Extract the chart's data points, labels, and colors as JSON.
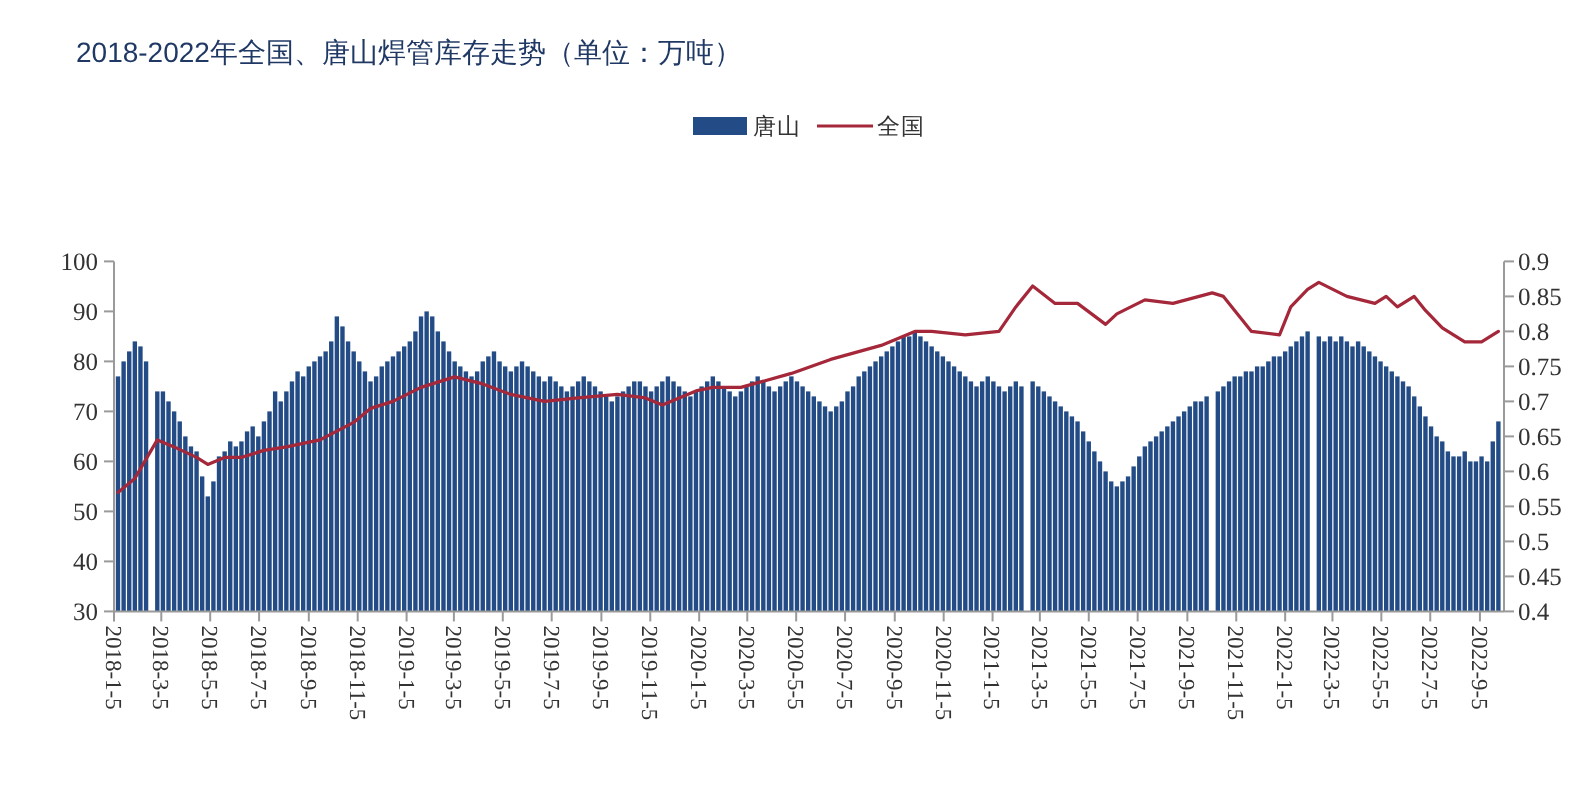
{
  "chart_data": {
    "type": "bar",
    "title": "2018-2022年全国、唐山焊管库存走势（单位：万吨）",
    "legend": "top",
    "x": [
      "2018-01-10",
      "2018-01-17",
      "2018-01-24",
      "2018-01-31",
      "2018-02-07",
      "2018-02-14",
      "2018-02-21",
      "2018-02-28",
      "2018-03-07",
      "2018-03-14",
      "2018-03-21",
      "2018-03-28",
      "2018-04-04",
      "2018-04-11",
      "2018-04-18",
      "2018-04-25",
      "2018-05-02",
      "2018-05-09",
      "2018-05-16",
      "2018-05-23",
      "2018-05-30",
      "2018-06-06",
      "2018-06-13",
      "2018-06-20",
      "2018-06-27",
      "2018-07-04",
      "2018-07-11",
      "2018-07-18",
      "2018-07-25",
      "2018-08-01",
      "2018-08-08",
      "2018-08-15",
      "2018-08-22",
      "2018-08-29",
      "2018-09-05",
      "2018-09-12",
      "2018-09-19",
      "2018-09-26",
      "2018-10-03",
      "2018-10-10",
      "2018-10-17",
      "2018-10-24",
      "2018-10-31",
      "2018-11-07",
      "2018-11-14",
      "2018-11-21",
      "2018-11-28",
      "2018-12-05",
      "2018-12-12",
      "2018-12-19",
      "2018-12-26",
      "2019-01-02",
      "2019-01-09",
      "2019-01-16",
      "2019-01-23",
      "2019-01-30",
      "2019-02-06",
      "2019-02-13",
      "2019-02-20",
      "2019-02-27",
      "2019-03-06",
      "2019-03-13",
      "2019-03-20",
      "2019-03-27",
      "2019-04-03",
      "2019-04-10",
      "2019-04-17",
      "2019-04-24",
      "2019-05-01",
      "2019-05-08",
      "2019-05-15",
      "2019-05-22",
      "2019-05-29",
      "2019-06-05",
      "2019-06-12",
      "2019-06-19",
      "2019-06-26",
      "2019-07-03",
      "2019-07-10",
      "2019-07-17",
      "2019-07-24",
      "2019-07-31",
      "2019-08-07",
      "2019-08-14",
      "2019-08-21",
      "2019-08-28",
      "2019-09-04",
      "2019-09-11",
      "2019-09-18",
      "2019-09-25",
      "2019-10-02",
      "2019-10-09",
      "2019-10-16",
      "2019-10-23",
      "2019-10-30",
      "2019-11-06",
      "2019-11-13",
      "2019-11-20",
      "2019-11-27",
      "2019-12-04",
      "2019-12-11",
      "2019-12-18",
      "2019-12-25",
      "2020-01-01",
      "2020-01-08",
      "2020-01-15",
      "2020-01-22",
      "2020-01-29",
      "2020-02-05",
      "2020-02-12",
      "2020-02-19",
      "2020-02-26",
      "2020-03-04",
      "2020-03-11",
      "2020-03-18",
      "2020-03-25",
      "2020-04-01",
      "2020-04-08",
      "2020-04-15",
      "2020-04-22",
      "2020-04-29",
      "2020-05-06",
      "2020-05-13",
      "2020-05-20",
      "2020-05-27",
      "2020-06-03",
      "2020-06-10",
      "2020-06-17",
      "2020-06-24",
      "2020-07-01",
      "2020-07-08",
      "2020-07-15",
      "2020-07-22",
      "2020-07-29",
      "2020-08-05",
      "2020-08-12",
      "2020-08-19",
      "2020-08-26",
      "2020-09-02",
      "2020-09-09",
      "2020-09-16",
      "2020-09-23",
      "2020-09-30",
      "2020-10-07",
      "2020-10-14",
      "2020-10-21",
      "2020-10-28",
      "2020-11-04",
      "2020-11-11",
      "2020-11-18",
      "2020-11-25",
      "2020-12-02",
      "2020-12-09",
      "2020-12-16",
      "2020-12-23",
      "2020-12-30",
      "2021-01-06",
      "2021-01-13",
      "2021-01-20",
      "2021-01-27",
      "2021-02-03",
      "2021-02-10",
      "2021-02-17",
      "2021-02-24",
      "2021-03-03",
      "2021-03-10",
      "2021-03-17",
      "2021-03-24",
      "2021-03-31",
      "2021-04-07",
      "2021-04-14",
      "2021-04-21",
      "2021-04-28",
      "2021-05-05",
      "2021-05-12",
      "2021-05-19",
      "2021-05-26",
      "2021-06-02",
      "2021-06-09",
      "2021-06-16",
      "2021-06-23",
      "2021-06-30",
      "2021-07-07",
      "2021-07-14",
      "2021-07-21",
      "2021-07-28",
      "2021-08-04",
      "2021-08-11",
      "2021-08-18",
      "2021-08-25",
      "2021-09-01",
      "2021-09-08",
      "2021-09-15",
      "2021-09-22",
      "2021-09-29",
      "2021-10-06",
      "2021-10-13",
      "2021-10-20",
      "2021-10-27",
      "2021-11-03",
      "2021-11-10",
      "2021-11-17",
      "2021-11-24",
      "2021-12-01",
      "2021-12-08",
      "2021-12-15",
      "2021-12-22",
      "2021-12-29",
      "2022-01-05",
      "2022-01-12",
      "2022-01-19",
      "2022-01-26",
      "2022-02-02",
      "2022-02-09",
      "2022-02-16",
      "2022-02-23",
      "2022-03-02",
      "2022-03-09",
      "2022-03-16",
      "2022-03-23",
      "2022-03-30",
      "2022-04-06",
      "2022-04-13",
      "2022-04-20",
      "2022-04-27",
      "2022-05-04",
      "2022-05-11",
      "2022-05-18",
      "2022-05-25",
      "2022-06-01",
      "2022-06-08",
      "2022-06-15",
      "2022-06-22",
      "2022-06-29",
      "2022-07-06",
      "2022-07-13",
      "2022-07-20",
      "2022-07-27",
      "2022-08-03",
      "2022-08-10",
      "2022-08-17",
      "2022-08-24",
      "2022-08-31",
      "2022-09-07",
      "2022-09-14",
      "2022-09-21",
      "2022-09-28"
    ],
    "series": [
      {
        "name": "唐山",
        "color": "#234c86",
        "values": [
          77,
          80,
          82,
          84,
          83,
          80,
          null,
          74,
          74,
          72,
          70,
          68,
          65,
          63,
          62,
          57,
          53,
          56,
          61,
          62,
          64,
          63,
          64,
          66,
          67,
          65,
          68,
          70,
          74,
          72,
          74,
          76,
          78,
          77,
          79,
          80,
          81,
          82,
          84,
          89,
          87,
          84,
          82,
          80,
          78,
          76,
          77,
          79,
          80,
          81,
          82,
          83,
          84,
          86,
          89,
          90,
          89,
          86,
          84,
          82,
          80,
          79,
          78,
          77,
          78,
          80,
          81,
          82,
          80,
          79,
          78,
          79,
          80,
          79,
          78,
          77,
          76,
          77,
          76,
          75,
          74,
          75,
          76,
          77,
          76,
          75,
          74,
          73,
          72,
          73,
          74,
          75,
          76,
          76,
          75,
          74,
          75,
          76,
          77,
          76,
          75,
          74,
          73,
          74,
          75,
          76,
          77,
          76,
          75,
          74,
          73,
          74,
          75,
          76,
          77,
          76,
          75,
          74,
          75,
          76,
          77,
          76,
          75,
          74,
          73,
          72,
          71,
          70,
          71,
          72,
          74,
          75,
          77,
          78,
          79,
          80,
          81,
          82,
          83,
          84,
          85,
          85,
          86,
          85,
          84,
          83,
          82,
          81,
          80,
          79,
          78,
          77,
          76,
          75,
          76,
          77,
          76,
          75,
          74,
          75,
          76,
          75,
          null,
          76,
          75,
          74,
          73,
          72,
          71,
          70,
          69,
          68,
          66,
          64,
          62,
          60,
          58,
          56,
          55,
          56,
          57,
          59,
          61,
          63,
          64,
          65,
          66,
          67,
          68,
          69,
          70,
          71,
          72,
          72,
          73,
          null,
          74,
          75,
          76,
          77,
          77,
          78,
          78,
          79,
          79,
          80,
          81,
          81,
          82,
          83,
          84,
          85,
          86,
          null,
          85,
          84,
          85,
          84,
          85,
          84,
          83,
          84,
          83,
          82,
          81,
          80,
          79,
          78,
          77,
          76,
          75,
          73,
          71,
          69,
          67,
          65,
          64,
          62,
          61,
          61,
          62,
          60,
          60,
          61,
          60,
          64,
          68
        ]
      },
      {
        "name": "全国",
        "type": "line",
        "axis": "y2",
        "color": "#a5283a",
        "x": [
          "2018-01-10",
          "2018-01-31",
          "2018-02-28",
          "2018-03-21",
          "2018-04-18",
          "2018-05-02",
          "2018-05-23",
          "2018-06-13",
          "2018-07-11",
          "2018-08-08",
          "2018-09-19",
          "2018-10-31",
          "2018-11-21",
          "2018-12-19",
          "2019-01-23",
          "2019-03-06",
          "2019-04-10",
          "2019-05-15",
          "2019-06-26",
          "2019-08-07",
          "2019-09-25",
          "2019-10-30",
          "2019-11-20",
          "2020-01-01",
          "2020-01-22",
          "2020-02-26",
          "2020-04-29",
          "2020-06-17",
          "2020-08-19",
          "2020-09-30",
          "2020-10-21",
          "2020-12-02",
          "2021-01-13",
          "2021-02-03",
          "2021-02-24",
          "2021-03-24",
          "2021-04-21",
          "2021-05-26",
          "2021-06-09",
          "2021-07-14",
          "2021-08-18",
          "2021-10-06",
          "2021-10-20",
          "2021-11-10",
          "2021-11-24",
          "2021-12-29",
          "2022-01-12",
          "2022-02-02",
          "2022-02-16",
          "2022-03-23",
          "2022-04-27",
          "2022-05-11",
          "2022-05-25",
          "2022-06-15",
          "2022-06-29",
          "2022-07-20",
          "2022-08-17",
          "2022-09-07",
          "2022-09-28"
        ],
        "values": [
          0.57,
          0.59,
          0.645,
          0.635,
          0.62,
          0.61,
          0.62,
          0.62,
          0.63,
          0.635,
          0.645,
          0.67,
          0.69,
          0.7,
          0.72,
          0.735,
          0.725,
          0.71,
          0.7,
          0.705,
          0.71,
          0.705,
          0.695,
          0.715,
          0.72,
          0.72,
          0.74,
          0.76,
          0.78,
          0.8,
          0.8,
          0.795,
          0.8,
          0.835,
          0.865,
          0.84,
          0.84,
          0.81,
          0.825,
          0.845,
          0.84,
          0.855,
          0.85,
          0.82,
          0.8,
          0.795,
          0.835,
          0.86,
          0.87,
          0.85,
          0.84,
          0.85,
          0.835,
          0.85,
          0.83,
          0.805,
          0.785,
          0.785,
          0.8
        ]
      }
    ],
    "xlim": [
      "2018-01-05",
      "2022-10-05"
    ],
    "xticks": [
      {
        "value": "2018-01-05",
        "label": "2018-1-5"
      },
      {
        "value": "2018-03-05",
        "label": "2018-3-5"
      },
      {
        "value": "2018-05-05",
        "label": "2018-5-5"
      },
      {
        "value": "2018-07-05",
        "label": "2018-7-5"
      },
      {
        "value": "2018-09-05",
        "label": "2018-9-5"
      },
      {
        "value": "2018-11-05",
        "label": "2018-11-5"
      },
      {
        "value": "2019-01-05",
        "label": "2019-1-5"
      },
      {
        "value": "2019-03-05",
        "label": "2019-3-5"
      },
      {
        "value": "2019-05-05",
        "label": "2019-5-5"
      },
      {
        "value": "2019-07-05",
        "label": "2019-7-5"
      },
      {
        "value": "2019-09-05",
        "label": "2019-9-5"
      },
      {
        "value": "2019-11-05",
        "label": "2019-11-5"
      },
      {
        "value": "2020-01-05",
        "label": "2020-1-5"
      },
      {
        "value": "2020-03-05",
        "label": "2020-3-5"
      },
      {
        "value": "2020-05-05",
        "label": "2020-5-5"
      },
      {
        "value": "2020-07-05",
        "label": "2020-7-5"
      },
      {
        "value": "2020-09-05",
        "label": "2020-9-5"
      },
      {
        "value": "2020-11-05",
        "label": "2020-11-5"
      },
      {
        "value": "2021-01-05",
        "label": "2021-1-5"
      },
      {
        "value": "2021-03-05",
        "label": "2021-3-5"
      },
      {
        "value": "2021-05-05",
        "label": "2021-5-5"
      },
      {
        "value": "2021-07-05",
        "label": "2021-7-5"
      },
      {
        "value": "2021-09-05",
        "label": "2021-9-5"
      },
      {
        "value": "2021-11-05",
        "label": "2021-11-5"
      },
      {
        "value": "2022-01-05",
        "label": "2022-1-5"
      },
      {
        "value": "2022-03-05",
        "label": "2022-3-5"
      },
      {
        "value": "2022-05-05",
        "label": "2022-5-5"
      },
      {
        "value": "2022-07-05",
        "label": "2022-7-5"
      },
      {
        "value": "2022-09-05",
        "label": "2022-9-5"
      }
    ],
    "ylim": [
      30,
      100
    ],
    "yticks": [
      30,
      40,
      50,
      60,
      70,
      80,
      90,
      100
    ],
    "y2lim": [
      0.4,
      0.9
    ],
    "y2ticks": [
      0.4,
      0.45,
      0.5,
      0.55,
      0.6,
      0.65,
      0.7,
      0.75,
      0.8,
      0.85,
      0.9
    ]
  }
}
